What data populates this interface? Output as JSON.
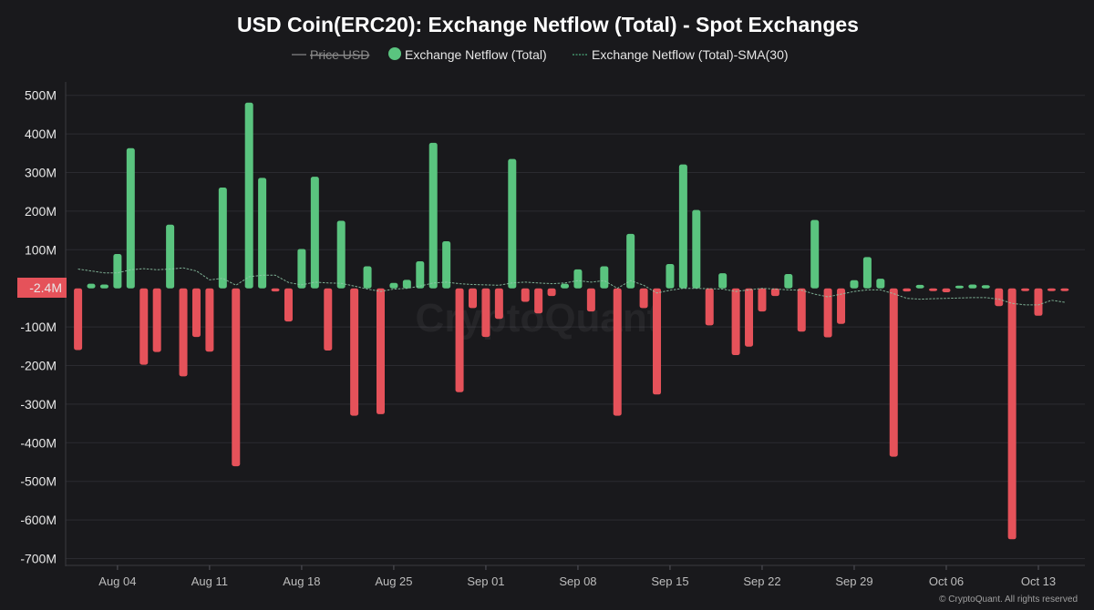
{
  "chart_data": {
    "type": "bar",
    "title": "USD Coin(ERC20): Exchange Netflow (Total) - Spot Exchanges",
    "legend": [
      {
        "name": "Price USD",
        "hidden": true,
        "style": "line"
      },
      {
        "name": "Exchange Netflow (Total)",
        "style": "dot",
        "color": "#5ac47f"
      },
      {
        "name": "Exchange Netflow (Total)-SMA(30)",
        "style": "dashed-line",
        "color": "#4aa878"
      }
    ],
    "legend_placement": "top-center",
    "colors": {
      "positive": "#5ac47f",
      "negative": "#e5525a",
      "sma": "#8fc9a8",
      "background": "#19191c",
      "grid": "#2b2b30",
      "current_value_badge": "#e5525a"
    },
    "ylim": [
      -700,
      500
    ],
    "yunit": "M",
    "yticks": [
      "500M",
      "400M",
      "300M",
      "200M",
      "100M",
      "-100M",
      "-200M",
      "-300M",
      "-400M",
      "-500M",
      "-600M",
      "-700M"
    ],
    "ytick_values": [
      500,
      400,
      300,
      200,
      100,
      -100,
      -200,
      -300,
      -400,
      -500,
      -600,
      -700
    ],
    "current_value_label": "-2.4M",
    "current_value": -2.4,
    "xticks": [
      {
        "label": "Aug 04",
        "date": "2024-08-04"
      },
      {
        "label": "Aug 11",
        "date": "2024-08-11"
      },
      {
        "label": "Aug 18",
        "date": "2024-08-18"
      },
      {
        "label": "Aug 25",
        "date": "2024-08-25"
      },
      {
        "label": "Sep 01",
        "date": "2024-09-01"
      },
      {
        "label": "Sep 08",
        "date": "2024-09-08"
      },
      {
        "label": "Sep 15",
        "date": "2024-09-15"
      },
      {
        "label": "Sep 22",
        "date": "2024-09-22"
      },
      {
        "label": "Sep 29",
        "date": "2024-09-29"
      },
      {
        "label": "Oct 06",
        "date": "2024-10-06"
      },
      {
        "label": "Oct 13",
        "date": "2024-10-13"
      }
    ],
    "grid": true,
    "dates": [
      "2024-08-01",
      "2024-08-02",
      "2024-08-03",
      "2024-08-04",
      "2024-08-05",
      "2024-08-06",
      "2024-08-07",
      "2024-08-08",
      "2024-08-09",
      "2024-08-10",
      "2024-08-11",
      "2024-08-12",
      "2024-08-13",
      "2024-08-14",
      "2024-08-15",
      "2024-08-16",
      "2024-08-17",
      "2024-08-18",
      "2024-08-19",
      "2024-08-20",
      "2024-08-21",
      "2024-08-22",
      "2024-08-23",
      "2024-08-24",
      "2024-08-25",
      "2024-08-26",
      "2024-08-27",
      "2024-08-28",
      "2024-08-29",
      "2024-08-30",
      "2024-08-31",
      "2024-09-01",
      "2024-09-02",
      "2024-09-03",
      "2024-09-04",
      "2024-09-05",
      "2024-09-06",
      "2024-09-07",
      "2024-09-08",
      "2024-09-09",
      "2024-09-10",
      "2024-09-11",
      "2024-09-12",
      "2024-09-13",
      "2024-09-14",
      "2024-09-15",
      "2024-09-16",
      "2024-09-17",
      "2024-09-18",
      "2024-09-19",
      "2024-09-20",
      "2024-09-21",
      "2024-09-22",
      "2024-09-23",
      "2024-09-24",
      "2024-09-25",
      "2024-09-26",
      "2024-09-27",
      "2024-09-28",
      "2024-09-29",
      "2024-09-30",
      "2024-10-01",
      "2024-10-02",
      "2024-10-03",
      "2024-10-04",
      "2024-10-05",
      "2024-10-06",
      "2024-10-07",
      "2024-10-08",
      "2024-10-09",
      "2024-10-10",
      "2024-10-11",
      "2024-10-12",
      "2024-10-13",
      "2024-10-14",
      "2024-10-15"
    ],
    "series": [
      {
        "name": "Exchange Netflow (Total)",
        "values": [
          -160,
          12,
          10,
          89,
          363,
          -198,
          -165,
          165,
          -228,
          -126,
          -164,
          261,
          -461,
          481,
          286,
          -8,
          -86,
          102,
          289,
          -161,
          175,
          -330,
          57,
          -326,
          14,
          22,
          70,
          377,
          122,
          -269,
          -51,
          -126,
          -79,
          335,
          -35,
          -65,
          -20,
          12,
          49,
          -60,
          57,
          -330,
          141,
          -51,
          -275,
          63,
          321,
          203,
          -96,
          39,
          -173,
          -151,
          -60,
          -20,
          37,
          -112,
          177,
          -127,
          -92,
          21,
          81,
          25,
          -436,
          -8,
          9,
          -4,
          -10,
          5,
          10,
          8,
          -46,
          -650,
          -3,
          -71,
          -4,
          -2
        ]
      },
      {
        "name": "Exchange Netflow (Total)-SMA(30)",
        "values": [
          50,
          45,
          40,
          40,
          48,
          51,
          48,
          50,
          53,
          45,
          22,
          26,
          8,
          30,
          34,
          34,
          15,
          9,
          16,
          14,
          13,
          6,
          -2,
          -8,
          -2,
          0,
          6,
          14,
          16,
          12,
          10,
          9,
          8,
          14,
          16,
          14,
          12,
          14,
          20,
          16,
          20,
          0,
          20,
          8,
          -12,
          -5,
          0,
          0,
          -1,
          -2,
          -8,
          -4,
          0,
          -2,
          -4,
          -5,
          -15,
          -22,
          -15,
          -8,
          -4,
          -4,
          -14,
          -26,
          -28,
          -27,
          -26,
          -25,
          -24,
          -24,
          -28,
          -39,
          -43,
          -43,
          -31,
          -36
        ]
      }
    ]
  },
  "watermark": "CryptoQuant",
  "credit": "© CryptoQuant. All rights reserved"
}
